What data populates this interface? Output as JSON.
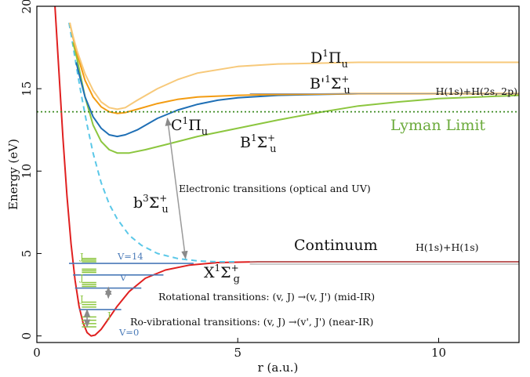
{
  "chart_data": {
    "type": "line",
    "xlabel": "r (a.u.)",
    "ylabel": "Energy (eV)",
    "xlim": [
      0,
      12
    ],
    "ylim": [
      -0.4,
      20
    ],
    "x_ticks": [
      0,
      5,
      10
    ],
    "y_ticks": [
      0,
      5,
      10,
      15,
      20
    ],
    "grid": false,
    "series": [
      {
        "name": "X¹Σ⁺g",
        "color": "#e02020",
        "x": [
          0.45,
          0.55,
          0.65,
          0.75,
          0.85,
          0.95,
          1.05,
          1.15,
          1.25,
          1.35,
          1.45,
          1.6,
          1.8,
          2.0,
          2.3,
          2.7,
          3.2,
          3.8,
          4.5,
          5.5,
          7,
          9,
          12
        ],
        "y": [
          20,
          16.0,
          12.0,
          8.5,
          5.6,
          3.4,
          1.8,
          0.8,
          0.2,
          0.0,
          0.05,
          0.4,
          1.1,
          1.8,
          2.7,
          3.5,
          4.0,
          4.3,
          4.45,
          4.5,
          4.5,
          4.5,
          4.5
        ]
      },
      {
        "name": "b³Σ⁺u",
        "color": "#5bc8e8",
        "dashed": true,
        "x": [
          0.8,
          0.9,
          1.0,
          1.1,
          1.25,
          1.4,
          1.6,
          1.8,
          2.0,
          2.3,
          2.6,
          3.0,
          3.5,
          4.0,
          4.5,
          5.0
        ],
        "y": [
          19.0,
          17.6,
          16.1,
          14.7,
          12.8,
          11.1,
          9.3,
          8.0,
          7.1,
          6.1,
          5.5,
          5.0,
          4.7,
          4.55,
          4.5,
          4.5
        ]
      },
      {
        "name": "B¹Σ⁺u",
        "color": "#8cc63f",
        "x": [
          0.9,
          1.0,
          1.2,
          1.4,
          1.6,
          1.8,
          2.0,
          2.3,
          2.7,
          3.2,
          4.0,
          5.0,
          6.0,
          7.0,
          8.0,
          9.0,
          10.0,
          11.0,
          12.0
        ],
        "y": [
          17.8,
          16.8,
          14.5,
          12.8,
          11.8,
          11.3,
          11.1,
          11.1,
          11.3,
          11.6,
          12.1,
          12.6,
          13.1,
          13.55,
          13.95,
          14.2,
          14.4,
          14.5,
          14.6
        ]
      },
      {
        "name": "C¹Πu",
        "color": "#1f6fb5",
        "x": [
          0.98,
          1.05,
          1.2,
          1.4,
          1.6,
          1.8,
          2.0,
          2.2,
          2.5,
          3.0,
          3.5,
          4.0,
          4.5,
          5.0,
          6.0,
          7.0,
          8.0,
          10.0,
          12.0
        ],
        "y": [
          16.6,
          15.9,
          14.5,
          13.3,
          12.6,
          12.2,
          12.1,
          12.2,
          12.5,
          13.2,
          13.7,
          14.05,
          14.3,
          14.45,
          14.6,
          14.65,
          14.7,
          14.7,
          14.7
        ]
      },
      {
        "name": "B'¹Σ⁺u",
        "color": "#f39c12",
        "x": [
          0.82,
          0.9,
          1.0,
          1.2,
          1.4,
          1.6,
          1.8,
          2.0,
          2.2,
          2.5,
          3.0,
          3.5,
          4.0,
          5.0,
          6.0,
          8.0,
          10.0,
          12.0
        ],
        "y": [
          19.0,
          18.1,
          17.1,
          15.5,
          14.5,
          13.9,
          13.6,
          13.5,
          13.55,
          13.75,
          14.1,
          14.35,
          14.5,
          14.6,
          14.65,
          14.7,
          14.7,
          14.7
        ]
      },
      {
        "name": "D¹Πu",
        "color": "#f7c97a",
        "x": [
          0.82,
          0.9,
          1.0,
          1.2,
          1.4,
          1.6,
          1.8,
          2.0,
          2.2,
          2.5,
          3.0,
          3.5,
          4.0,
          5.0,
          6.0,
          7.0,
          8.0,
          10.0,
          12.0
        ],
        "y": [
          19.0,
          18.2,
          17.3,
          15.9,
          14.9,
          14.2,
          13.85,
          13.75,
          13.85,
          14.3,
          15.0,
          15.55,
          15.95,
          16.35,
          16.5,
          16.55,
          16.6,
          16.6,
          16.6
        ]
      }
    ],
    "reference_lines": [
      {
        "name": "Lyman Limit",
        "y": 13.6,
        "color": "#3a8a20",
        "style": "dotted"
      },
      {
        "name": "H(1s)+H(1s)",
        "y": 4.5,
        "color": "#9a9a9a",
        "style": "solid"
      },
      {
        "name": "H(1s)+H(2s, 2p)",
        "y": 14.7,
        "color": "#9a9a9a",
        "style": "solid"
      }
    ],
    "vibrational_levels": {
      "color": "#4a7ab8",
      "levels": [
        {
          "energy": 1.6,
          "r_min": 1.05,
          "r_max": 2.1
        },
        {
          "energy": 2.9,
          "r_min": 0.95,
          "r_max": 2.6
        },
        {
          "energy": 3.7,
          "r_min": 0.9,
          "r_max": 3.15
        },
        {
          "energy": 4.4,
          "r_min": 0.8,
          "r_max": 3.9
        }
      ],
      "label_top": "V=14",
      "label_mid": "V",
      "label_bottom": "V=0"
    },
    "rotational_sublevels": {
      "color": "#8cc63f",
      "label": "J",
      "groups": [
        {
          "energies": [
            0.55,
            0.75,
            0.95,
            1.15
          ]
        },
        {
          "energies": [
            1.75,
            1.9,
            2.05
          ]
        },
        {
          "energies": [
            3.0,
            3.12,
            3.24
          ]
        },
        {
          "energies": [
            3.85,
            3.95,
            4.05
          ]
        },
        {
          "energies": [
            4.5,
            4.6,
            4.7
          ]
        }
      ]
    },
    "annotations": {
      "electronic_transitions": "Electronic transitions (optical and UV)",
      "rotational_transitions": "Rotational transitions:   (v, J) →(v, J')  (mid-IR)",
      "rovibrational_transitions": "Ro-vibrational transitions: (v, J) →(v', J') (near-IR)",
      "continuum": "Continuum",
      "h1s_h1s": "H(1s)+H(1s)",
      "h1s_h2s2p": "H(1s)+H(2s, 2p)",
      "lyman_limit": "Lyman Limit"
    },
    "state_labels": {
      "X": [
        "X",
        "1",
        "Σ",
        "+",
        "g"
      ],
      "b": [
        "b",
        "3",
        "Σ",
        "+",
        "u"
      ],
      "B": [
        "B",
        "1",
        "Σ",
        "+",
        "u"
      ],
      "C": [
        "C",
        "1",
        "Π",
        "u"
      ],
      "Bp": [
        "B'",
        "1",
        "Σ",
        "+",
        "u"
      ],
      "D": [
        "D",
        "1",
        "Π",
        "u"
      ]
    },
    "arrows": [
      {
        "name": "electronic-transition-arrow",
        "from": [
          3.25,
          13.2
        ],
        "to": [
          3.7,
          4.7
        ],
        "color": "#9a9a9a"
      },
      {
        "name": "rovib-transition-arrow",
        "from": [
          1.25,
          0.55
        ],
        "to": [
          1.25,
          1.6
        ],
        "color": "#888888"
      },
      {
        "name": "rot-transition-arrow",
        "from": [
          1.78,
          2.95
        ],
        "to": [
          1.78,
          2.3
        ],
        "color": "#888888"
      }
    ]
  }
}
